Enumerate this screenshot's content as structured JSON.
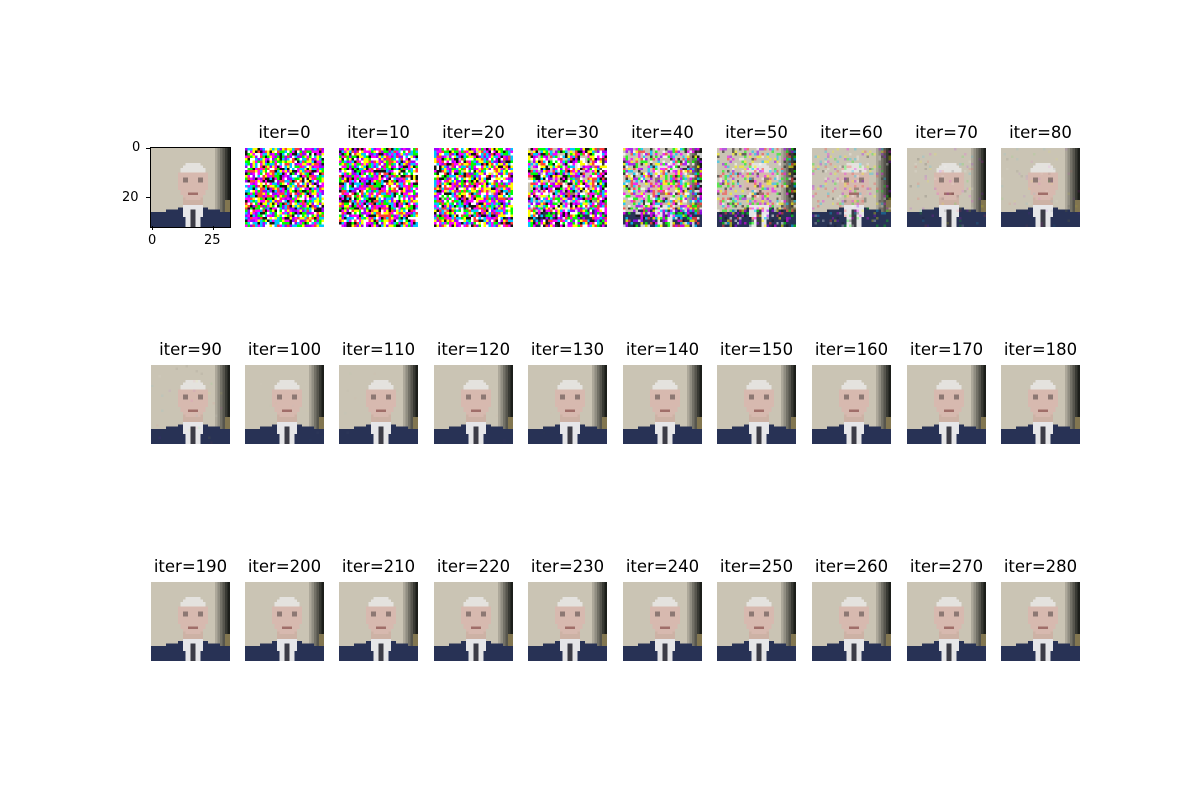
{
  "reference": {
    "yticks": [
      "0",
      "20"
    ],
    "xticks": [
      "0",
      "25"
    ]
  },
  "panels": [
    {
      "title": "iter=0",
      "noise": 1.0
    },
    {
      "title": "iter=10",
      "noise": 1.0
    },
    {
      "title": "iter=20",
      "noise": 0.97
    },
    {
      "title": "iter=30",
      "noise": 0.82
    },
    {
      "title": "iter=40",
      "noise": 0.6
    },
    {
      "title": "iter=50",
      "noise": 0.42
    },
    {
      "title": "iter=60",
      "noise": 0.22
    },
    {
      "title": "iter=70",
      "noise": 0.1
    },
    {
      "title": "iter=80",
      "noise": 0.05
    },
    {
      "title": "iter=90",
      "noise": 0.04
    },
    {
      "title": "iter=100",
      "noise": 0.01
    },
    {
      "title": "iter=110",
      "noise": 0.01
    },
    {
      "title": "iter=120",
      "noise": 0.01
    },
    {
      "title": "iter=130",
      "noise": 0.005
    },
    {
      "title": "iter=140",
      "noise": 0
    },
    {
      "title": "iter=150",
      "noise": 0
    },
    {
      "title": "iter=160",
      "noise": 0
    },
    {
      "title": "iter=170",
      "noise": 0
    },
    {
      "title": "iter=180",
      "noise": 0
    },
    {
      "title": "iter=190",
      "noise": 0
    },
    {
      "title": "iter=200",
      "noise": 0
    },
    {
      "title": "iter=210",
      "noise": 0
    },
    {
      "title": "iter=220",
      "noise": 0
    },
    {
      "title": "iter=230",
      "noise": 0
    },
    {
      "title": "iter=240",
      "noise": 0
    },
    {
      "title": "iter=250",
      "noise": 0
    },
    {
      "title": "iter=260",
      "noise": 0
    },
    {
      "title": "iter=270",
      "noise": 0
    },
    {
      "title": "iter=280",
      "noise": 0
    }
  ]
}
